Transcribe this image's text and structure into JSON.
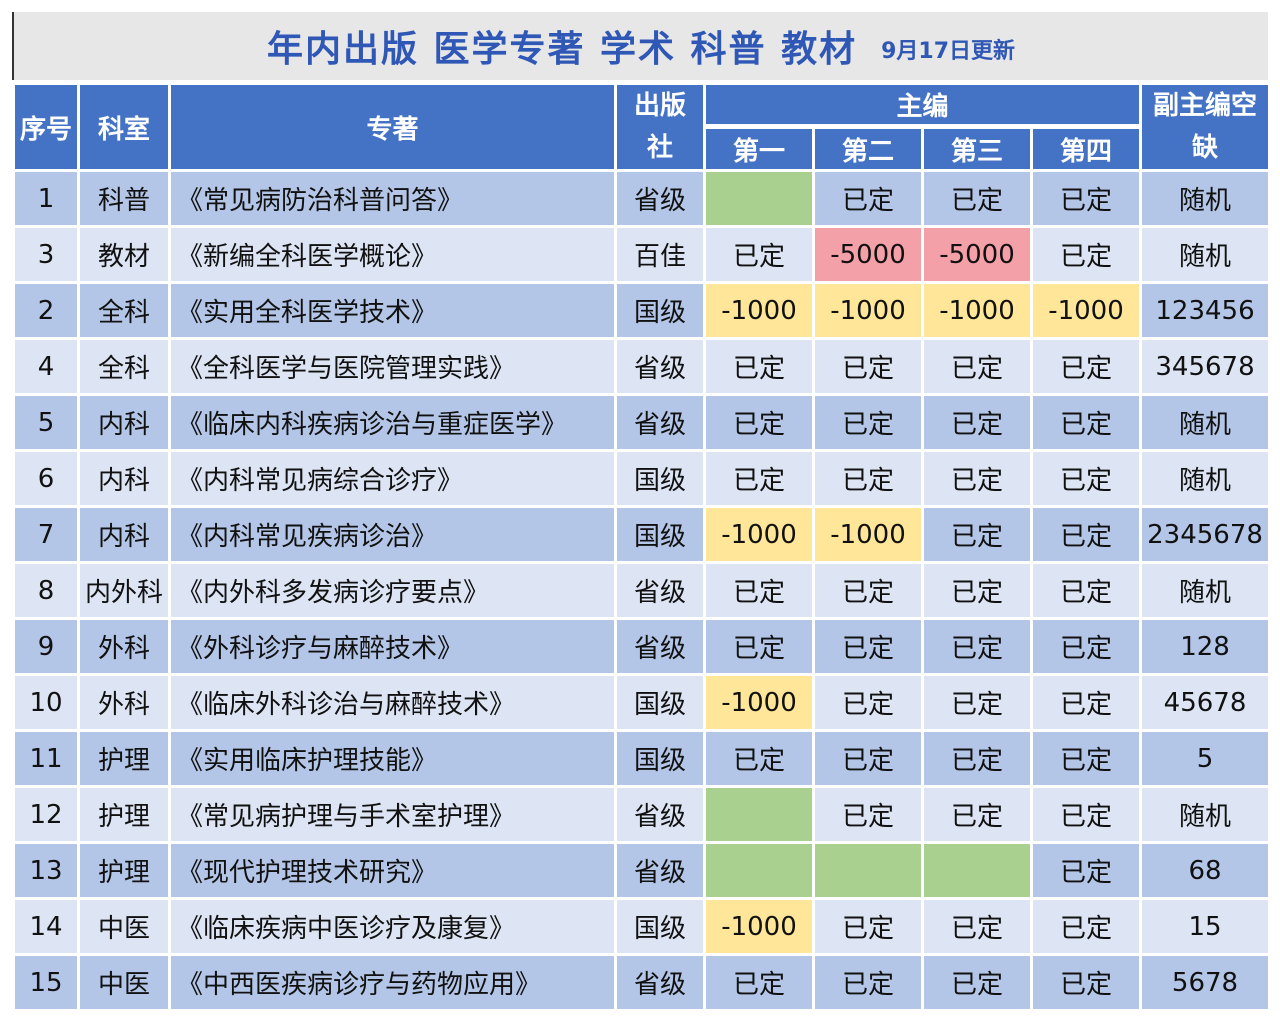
{
  "title": {
    "main": "年内出版  医学专著  学术  科普  教材",
    "update": "9月17日更新"
  },
  "headers": {
    "seq": "序号",
    "dept": "科室",
    "book": "专著",
    "publisher_line1": "出版",
    "publisher_line2": "社",
    "chief_editor": "主编",
    "first": "第一",
    "second": "第二",
    "third": "第三",
    "fourth": "第四",
    "deputy_line1": "副主编空",
    "deputy_line2": "缺"
  },
  "status_colors": {
    "green": "#a9d08e",
    "yellow": "#ffe699",
    "red": "#f4a0a8",
    "header_blue": "#4472c4",
    "row_dark": "#b4c6e7",
    "row_light": "#dde5f4"
  },
  "rows": [
    {
      "seq": "1",
      "dept": "科普",
      "book": "《常见病防治科普问答》",
      "pub": "省级",
      "e1": {
        "v": "",
        "c": "green"
      },
      "e2": {
        "v": "已定",
        "c": ""
      },
      "e3": {
        "v": "已定",
        "c": ""
      },
      "e4": {
        "v": "已定",
        "c": ""
      },
      "deputy": "随机"
    },
    {
      "seq": "3",
      "dept": "教材",
      "book": "《新编全科医学概论》",
      "pub": "百佳",
      "e1": {
        "v": "已定",
        "c": ""
      },
      "e2": {
        "v": "-5000",
        "c": "red"
      },
      "e3": {
        "v": "-5000",
        "c": "red"
      },
      "e4": {
        "v": "已定",
        "c": ""
      },
      "deputy": "随机"
    },
    {
      "seq": "2",
      "dept": "全科",
      "book": "《实用全科医学技术》",
      "pub": "国级",
      "e1": {
        "v": "-1000",
        "c": "yellow"
      },
      "e2": {
        "v": "-1000",
        "c": "yellow"
      },
      "e3": {
        "v": "-1000",
        "c": "yellow"
      },
      "e4": {
        "v": "-1000",
        "c": "yellow"
      },
      "deputy": "123456"
    },
    {
      "seq": "4",
      "dept": "全科",
      "book": "《全科医学与医院管理实践》",
      "pub": "省级",
      "e1": {
        "v": "已定",
        "c": ""
      },
      "e2": {
        "v": "已定",
        "c": ""
      },
      "e3": {
        "v": "已定",
        "c": ""
      },
      "e4": {
        "v": "已定",
        "c": ""
      },
      "deputy": "345678"
    },
    {
      "seq": "5",
      "dept": "内科",
      "book": "《临床内科疾病诊治与重症医学》",
      "pub": "省级",
      "e1": {
        "v": "已定",
        "c": ""
      },
      "e2": {
        "v": "已定",
        "c": ""
      },
      "e3": {
        "v": "已定",
        "c": ""
      },
      "e4": {
        "v": "已定",
        "c": ""
      },
      "deputy": "随机"
    },
    {
      "seq": "6",
      "dept": "内科",
      "book": "《内科常见病综合诊疗》",
      "pub": "国级",
      "e1": {
        "v": "已定",
        "c": ""
      },
      "e2": {
        "v": "已定",
        "c": ""
      },
      "e3": {
        "v": "已定",
        "c": ""
      },
      "e4": {
        "v": "已定",
        "c": ""
      },
      "deputy": "随机"
    },
    {
      "seq": "7",
      "dept": "内科",
      "book": "《内科常见疾病诊治》",
      "pub": "国级",
      "e1": {
        "v": "-1000",
        "c": "yellow"
      },
      "e2": {
        "v": "-1000",
        "c": "yellow"
      },
      "e3": {
        "v": "已定",
        "c": ""
      },
      "e4": {
        "v": "已定",
        "c": ""
      },
      "deputy": "2345678"
    },
    {
      "seq": "8",
      "dept": "内外科",
      "book": "《内外科多发病诊疗要点》",
      "pub": "省级",
      "e1": {
        "v": "已定",
        "c": ""
      },
      "e2": {
        "v": "已定",
        "c": ""
      },
      "e3": {
        "v": "已定",
        "c": ""
      },
      "e4": {
        "v": "已定",
        "c": ""
      },
      "deputy": "随机"
    },
    {
      "seq": "9",
      "dept": "外科",
      "book": "《外科诊疗与麻醉技术》",
      "pub": "省级",
      "e1": {
        "v": "已定",
        "c": ""
      },
      "e2": {
        "v": "已定",
        "c": ""
      },
      "e3": {
        "v": "已定",
        "c": ""
      },
      "e4": {
        "v": "已定",
        "c": ""
      },
      "deputy": "128"
    },
    {
      "seq": "10",
      "dept": "外科",
      "book": "《临床外科诊治与麻醉技术》",
      "pub": "国级",
      "e1": {
        "v": "-1000",
        "c": "yellow"
      },
      "e2": {
        "v": "已定",
        "c": ""
      },
      "e3": {
        "v": "已定",
        "c": ""
      },
      "e4": {
        "v": "已定",
        "c": ""
      },
      "deputy": "45678"
    },
    {
      "seq": "11",
      "dept": "护理",
      "book": "《实用临床护理技能》",
      "pub": "国级",
      "e1": {
        "v": "已定",
        "c": ""
      },
      "e2": {
        "v": "已定",
        "c": ""
      },
      "e3": {
        "v": "已定",
        "c": ""
      },
      "e4": {
        "v": "已定",
        "c": ""
      },
      "deputy": "5"
    },
    {
      "seq": "12",
      "dept": "护理",
      "book": "《常见病护理与手术室护理》",
      "pub": "省级",
      "e1": {
        "v": "",
        "c": "green"
      },
      "e2": {
        "v": "已定",
        "c": ""
      },
      "e3": {
        "v": "已定",
        "c": ""
      },
      "e4": {
        "v": "已定",
        "c": ""
      },
      "deputy": "随机"
    },
    {
      "seq": "13",
      "dept": "护理",
      "book": "《现代护理技术研究》",
      "pub": "省级",
      "e1": {
        "v": "",
        "c": "green"
      },
      "e2": {
        "v": "",
        "c": "green"
      },
      "e3": {
        "v": "",
        "c": "green"
      },
      "e4": {
        "v": "已定",
        "c": ""
      },
      "deputy": "68"
    },
    {
      "seq": "14",
      "dept": "中医",
      "book": "《临床疾病中医诊疗及康复》",
      "pub": "国级",
      "e1": {
        "v": "-1000",
        "c": "yellow"
      },
      "e2": {
        "v": "已定",
        "c": ""
      },
      "e3": {
        "v": "已定",
        "c": ""
      },
      "e4": {
        "v": "已定",
        "c": ""
      },
      "deputy": "15"
    },
    {
      "seq": "15",
      "dept": "中医",
      "book": "《中西医疾病诊疗与药物应用》",
      "pub": "省级",
      "e1": {
        "v": "已定",
        "c": ""
      },
      "e2": {
        "v": "已定",
        "c": ""
      },
      "e3": {
        "v": "已定",
        "c": ""
      },
      "e4": {
        "v": "已定",
        "c": ""
      },
      "deputy": "5678"
    }
  ]
}
